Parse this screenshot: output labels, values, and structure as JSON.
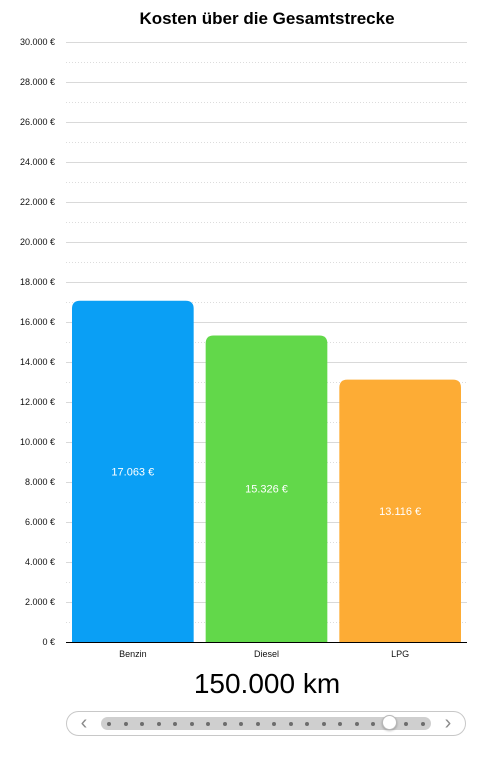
{
  "chart_data": {
    "type": "bar",
    "title": "Kosten über die Gesamtstrecke",
    "categories": [
      "Benzin",
      "Diesel",
      "LPG"
    ],
    "values": [
      17063,
      15326,
      13116
    ],
    "value_labels": [
      "17.063 €",
      "15.326 €",
      "13.116 €"
    ],
    "colors": [
      "#0a9ff5",
      "#62d84a",
      "#fdac35"
    ],
    "ylim": [
      0,
      30000
    ],
    "yticks": [
      0,
      2000,
      4000,
      6000,
      8000,
      10000,
      12000,
      14000,
      16000,
      18000,
      20000,
      22000,
      24000,
      26000,
      28000,
      30000
    ],
    "ytick_labels": [
      "0 €",
      "2.000 €",
      "4.000 €",
      "6.000 €",
      "8.000 €",
      "10.000 €",
      "12.000 €",
      "14.000 €",
      "16.000 €",
      "18.000 €",
      "20.000 €",
      "22.000 €",
      "24.000 €",
      "26.000 €",
      "28.000 €",
      "30.000 €"
    ],
    "xlabel": "",
    "ylabel": "",
    "grid": true,
    "legend": "none"
  },
  "distance_label": "150.000 km",
  "slider": {
    "steps": 20,
    "selected_index": 17,
    "prev_icon": "chevron-left-icon",
    "next_icon": "chevron-right-icon"
  }
}
